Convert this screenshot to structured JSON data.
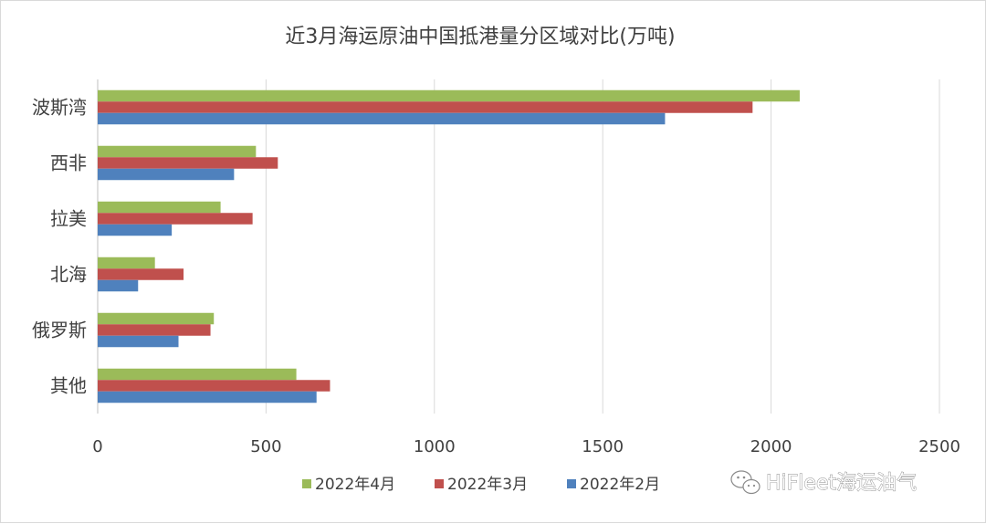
{
  "chart_data": {
    "type": "bar",
    "orientation": "horizontal",
    "title": "近3月海运原油中国抵港量分区域对比(万吨)",
    "xlabel": "",
    "ylabel": "",
    "categories": [
      "其他",
      "俄罗斯",
      "北海",
      "拉美",
      "西非",
      "波斯湾"
    ],
    "series": [
      {
        "name": "2022年4月",
        "color": "#9bbb59",
        "values": [
          590,
          345,
          170,
          365,
          470,
          2085
        ]
      },
      {
        "name": "2022年3月",
        "color": "#c0504d",
        "values": [
          690,
          335,
          255,
          460,
          535,
          1945
        ]
      },
      {
        "name": "2022年2月",
        "color": "#4f81bd",
        "values": [
          650,
          240,
          120,
          220,
          405,
          1685
        ]
      }
    ],
    "xlim": [
      0,
      2500
    ],
    "x_ticks": [
      "0",
      "500",
      "1000",
      "1500",
      "2000",
      "2500"
    ],
    "grid": true,
    "legend_position": "bottom"
  },
  "watermark": {
    "text": "HiFleet海运油气",
    "icon": "wechat-icon"
  }
}
